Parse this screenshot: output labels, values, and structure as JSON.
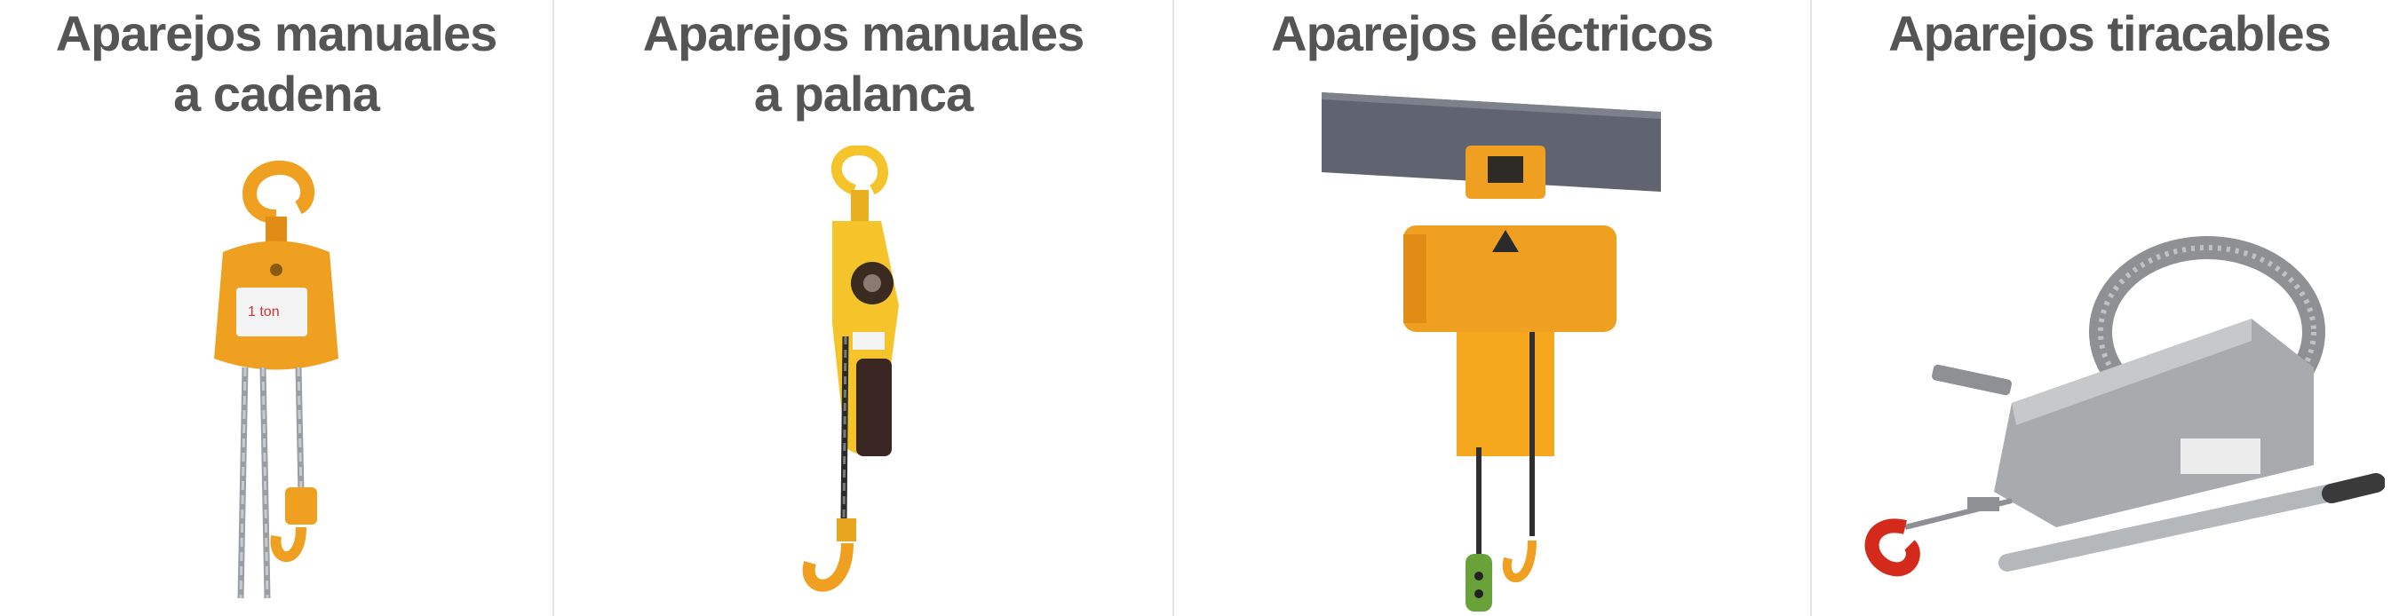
{
  "categories": [
    {
      "title": "Aparejos manuales\na cadena",
      "image": "chain-hoist"
    },
    {
      "title": "Aparejos manuales\na palanca",
      "image": "lever-hoist"
    },
    {
      "title": "Aparejos eléctricos",
      "image": "electric-hoist"
    },
    {
      "title": "Aparejos tiracables",
      "image": "wire-rope-puller"
    }
  ],
  "colors": {
    "title_text": "#555555",
    "divider": "#e3e3e3",
    "hoist_orange": "#f0a020",
    "hoist_yellow": "#f5c42a",
    "beam_gray": "#5f6470",
    "steel_gray": "#a8aaad",
    "hook_red": "#d42a1c"
  }
}
